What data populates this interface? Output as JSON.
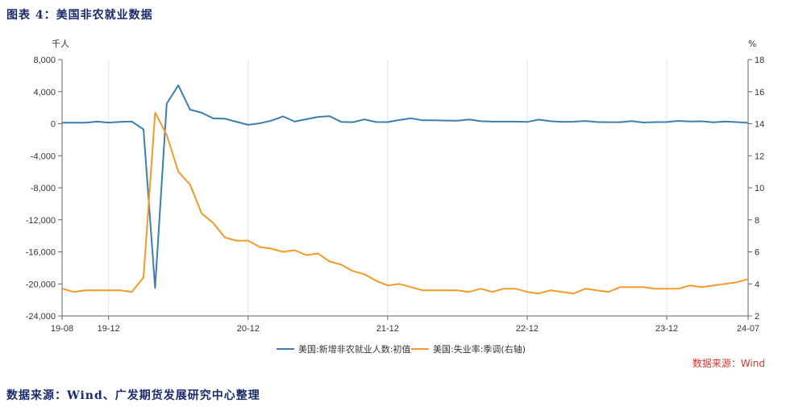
{
  "figure_title": "图表 4：美国非农就业数据",
  "source_note": "数据来源：Wind、广发期货发展研究中心整理",
  "chart_data": {
    "type": "line",
    "left_unit": "千人",
    "right_unit": "%",
    "credit": "数据来源：Wind",
    "y_left": {
      "min": -24000,
      "max": 8000,
      "ticks": [
        "8,000",
        "4,000",
        "0",
        "-4,000",
        "-8,000",
        "-12,000",
        "-16,000",
        "-20,000",
        "-24,000"
      ],
      "tick_values": [
        8000,
        4000,
        0,
        -4000,
        -8000,
        -12000,
        -16000,
        -20000,
        -24000
      ]
    },
    "y_right": {
      "min": 2,
      "max": 18,
      "ticks": [
        "18",
        "16",
        "14",
        "12",
        "10",
        "8",
        "6",
        "4",
        "2"
      ],
      "tick_values": [
        18,
        16,
        14,
        12,
        10,
        8,
        6,
        4,
        2
      ]
    },
    "x_ticks": [
      {
        "label": "19-08",
        "month": "2019-08"
      },
      {
        "label": "19-12",
        "month": "2019-12"
      },
      {
        "label": "20-12",
        "month": "2020-12"
      },
      {
        "label": "21-12",
        "month": "2021-12"
      },
      {
        "label": "22-12",
        "month": "2022-12"
      },
      {
        "label": "23-12",
        "month": "2023-12"
      },
      {
        "label": "24-07",
        "month": "2024-07"
      }
    ],
    "x_start": "2019-08",
    "x_end": "2024-07",
    "grid": "vertical",
    "legend_position": "bottom",
    "series": [
      {
        "name": "美国:新增非农就业人数:初值",
        "axis": "left",
        "color": "#3a7fb0",
        "points": [
          [
            "2019-08",
            130
          ],
          [
            "2019-10",
            120
          ],
          [
            "2019-11",
            266
          ],
          [
            "2019-12",
            145
          ],
          [
            "2020-01",
            225
          ],
          [
            "2020-02",
            273
          ],
          [
            "2020-03",
            -701
          ],
          [
            "2020-04",
            -20500
          ],
          [
            "2020-05",
            2509
          ],
          [
            "2020-06",
            4800
          ],
          [
            "2020-07",
            1763
          ],
          [
            "2020-08",
            1371
          ],
          [
            "2020-09",
            661
          ],
          [
            "2020-10",
            638
          ],
          [
            "2020-11",
            245
          ],
          [
            "2020-12",
            -140
          ],
          [
            "2021-01",
            49
          ],
          [
            "2021-02",
            379
          ],
          [
            "2021-03",
            916
          ],
          [
            "2021-04",
            266
          ],
          [
            "2021-05",
            559
          ],
          [
            "2021-06",
            850
          ],
          [
            "2021-07",
            943
          ],
          [
            "2021-08",
            235
          ],
          [
            "2021-09",
            194
          ],
          [
            "2021-10",
            531
          ],
          [
            "2021-11",
            210
          ],
          [
            "2021-12",
            199
          ],
          [
            "2022-01",
            467
          ],
          [
            "2022-02",
            678
          ],
          [
            "2022-03",
            431
          ],
          [
            "2022-04",
            428
          ],
          [
            "2022-05",
            390
          ],
          [
            "2022-06",
            372
          ],
          [
            "2022-07",
            528
          ],
          [
            "2022-08",
            315
          ],
          [
            "2022-09",
            263
          ],
          [
            "2022-10",
            261
          ],
          [
            "2022-11",
            263
          ],
          [
            "2022-12",
            223
          ],
          [
            "2023-01",
            517
          ],
          [
            "2023-02",
            311
          ],
          [
            "2023-03",
            236
          ],
          [
            "2023-04",
            253
          ],
          [
            "2023-05",
            339
          ],
          [
            "2023-06",
            209
          ],
          [
            "2023-07",
            187
          ],
          [
            "2023-08",
            187
          ],
          [
            "2023-09",
            336
          ],
          [
            "2023-10",
            150
          ],
          [
            "2023-11",
            199
          ],
          [
            "2023-12",
            216
          ],
          [
            "2024-01",
            353
          ],
          [
            "2024-02",
            275
          ],
          [
            "2024-03",
            303
          ],
          [
            "2024-04",
            175
          ],
          [
            "2024-05",
            272
          ],
          [
            "2024-06",
            206
          ],
          [
            "2024-07",
            114
          ]
        ]
      },
      {
        "name": "美国:失业率:季调(右轴)",
        "axis": "right",
        "color": "#f39a2b",
        "points": [
          [
            "2019-08",
            3.7
          ],
          [
            "2019-09",
            3.5
          ],
          [
            "2019-10",
            3.6
          ],
          [
            "2019-12",
            3.6
          ],
          [
            "2020-01",
            3.6
          ],
          [
            "2020-02",
            3.5
          ],
          [
            "2020-03",
            4.4
          ],
          [
            "2020-04",
            14.7
          ],
          [
            "2020-05",
            13.3
          ],
          [
            "2020-06",
            11.0
          ],
          [
            "2020-07",
            10.2
          ],
          [
            "2020-08",
            8.4
          ],
          [
            "2020-09",
            7.8
          ],
          [
            "2020-10",
            6.9
          ],
          [
            "2020-11",
            6.7
          ],
          [
            "2020-12",
            6.7
          ],
          [
            "2021-01",
            6.3
          ],
          [
            "2021-02",
            6.2
          ],
          [
            "2021-03",
            6.0
          ],
          [
            "2021-04",
            6.1
          ],
          [
            "2021-05",
            5.8
          ],
          [
            "2021-06",
            5.9
          ],
          [
            "2021-07",
            5.4
          ],
          [
            "2021-08",
            5.2
          ],
          [
            "2021-09",
            4.8
          ],
          [
            "2021-10",
            4.6
          ],
          [
            "2021-11",
            4.2
          ],
          [
            "2021-12",
            3.9
          ],
          [
            "2022-01",
            4.0
          ],
          [
            "2022-02",
            3.8
          ],
          [
            "2022-03",
            3.6
          ],
          [
            "2022-04",
            3.6
          ],
          [
            "2022-05",
            3.6
          ],
          [
            "2022-06",
            3.6
          ],
          [
            "2022-07",
            3.5
          ],
          [
            "2022-08",
            3.7
          ],
          [
            "2022-09",
            3.5
          ],
          [
            "2022-10",
            3.7
          ],
          [
            "2022-11",
            3.7
          ],
          [
            "2022-12",
            3.5
          ],
          [
            "2023-01",
            3.4
          ],
          [
            "2023-02",
            3.6
          ],
          [
            "2023-03",
            3.5
          ],
          [
            "2023-04",
            3.4
          ],
          [
            "2023-05",
            3.7
          ],
          [
            "2023-06",
            3.6
          ],
          [
            "2023-07",
            3.5
          ],
          [
            "2023-08",
            3.8
          ],
          [
            "2023-09",
            3.8
          ],
          [
            "2023-10",
            3.8
          ],
          [
            "2023-11",
            3.7
          ],
          [
            "2023-12",
            3.7
          ],
          [
            "2024-01",
            3.7
          ],
          [
            "2024-02",
            3.9
          ],
          [
            "2024-03",
            3.8
          ],
          [
            "2024-04",
            3.9
          ],
          [
            "2024-05",
            4.0
          ],
          [
            "2024-06",
            4.1
          ],
          [
            "2024-07",
            4.3
          ]
        ]
      }
    ]
  }
}
